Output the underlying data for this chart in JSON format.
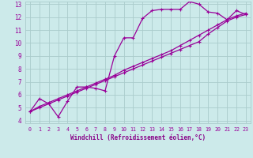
{
  "bg_color": "#cceaea",
  "grid_color": "#aacccc",
  "line_color": "#990099",
  "markersize": 2.5,
  "linewidth": 0.9,
  "xlabel": "Windchill (Refroidissement éolien,°C)",
  "xlabel_color": "#880088",
  "xlim": [
    -0.5,
    23.5
  ],
  "ylim": [
    3.8,
    13.2
  ],
  "yticks": [
    4,
    5,
    6,
    7,
    8,
    9,
    10,
    11,
    12,
    13
  ],
  "xticks": [
    0,
    1,
    2,
    3,
    4,
    5,
    6,
    7,
    8,
    9,
    10,
    11,
    12,
    13,
    14,
    15,
    16,
    17,
    18,
    19,
    20,
    21,
    22,
    23
  ],
  "line1_x": [
    0,
    1,
    2,
    3,
    4,
    5,
    6,
    7,
    8,
    9,
    10,
    11,
    12,
    13,
    14,
    15,
    16,
    17,
    18,
    19,
    20,
    21,
    22,
    23
  ],
  "line1_y": [
    4.7,
    5.7,
    5.3,
    4.3,
    5.5,
    6.6,
    6.6,
    6.5,
    6.3,
    9.0,
    10.4,
    10.4,
    11.9,
    12.5,
    12.6,
    12.6,
    12.6,
    13.2,
    13.0,
    12.4,
    12.3,
    11.8,
    12.5,
    12.2
  ],
  "line2_x": [
    0,
    1,
    2,
    3,
    4,
    5,
    6,
    7,
    8,
    9,
    10,
    11,
    12,
    13,
    14,
    15,
    16,
    17,
    18,
    19,
    20,
    21,
    22,
    23
  ],
  "line2_y": [
    4.7,
    5.0,
    5.3,
    5.6,
    5.9,
    6.2,
    6.5,
    6.8,
    7.1,
    7.4,
    7.7,
    8.0,
    8.3,
    8.6,
    8.9,
    9.2,
    9.5,
    9.8,
    10.1,
    10.7,
    11.2,
    11.7,
    12.0,
    12.2
  ],
  "line3_x": [
    0,
    1,
    2,
    3,
    4,
    5,
    6,
    7,
    8,
    9,
    10,
    11,
    12,
    13,
    14,
    15,
    16,
    17,
    18,
    19,
    20,
    21,
    22,
    23
  ],
  "line3_y": [
    4.7,
    5.1,
    5.4,
    5.7,
    6.0,
    6.3,
    6.6,
    6.9,
    7.2,
    7.5,
    7.9,
    8.2,
    8.5,
    8.8,
    9.1,
    9.4,
    9.8,
    10.2,
    10.6,
    11.0,
    11.4,
    11.8,
    12.1,
    12.3
  ]
}
